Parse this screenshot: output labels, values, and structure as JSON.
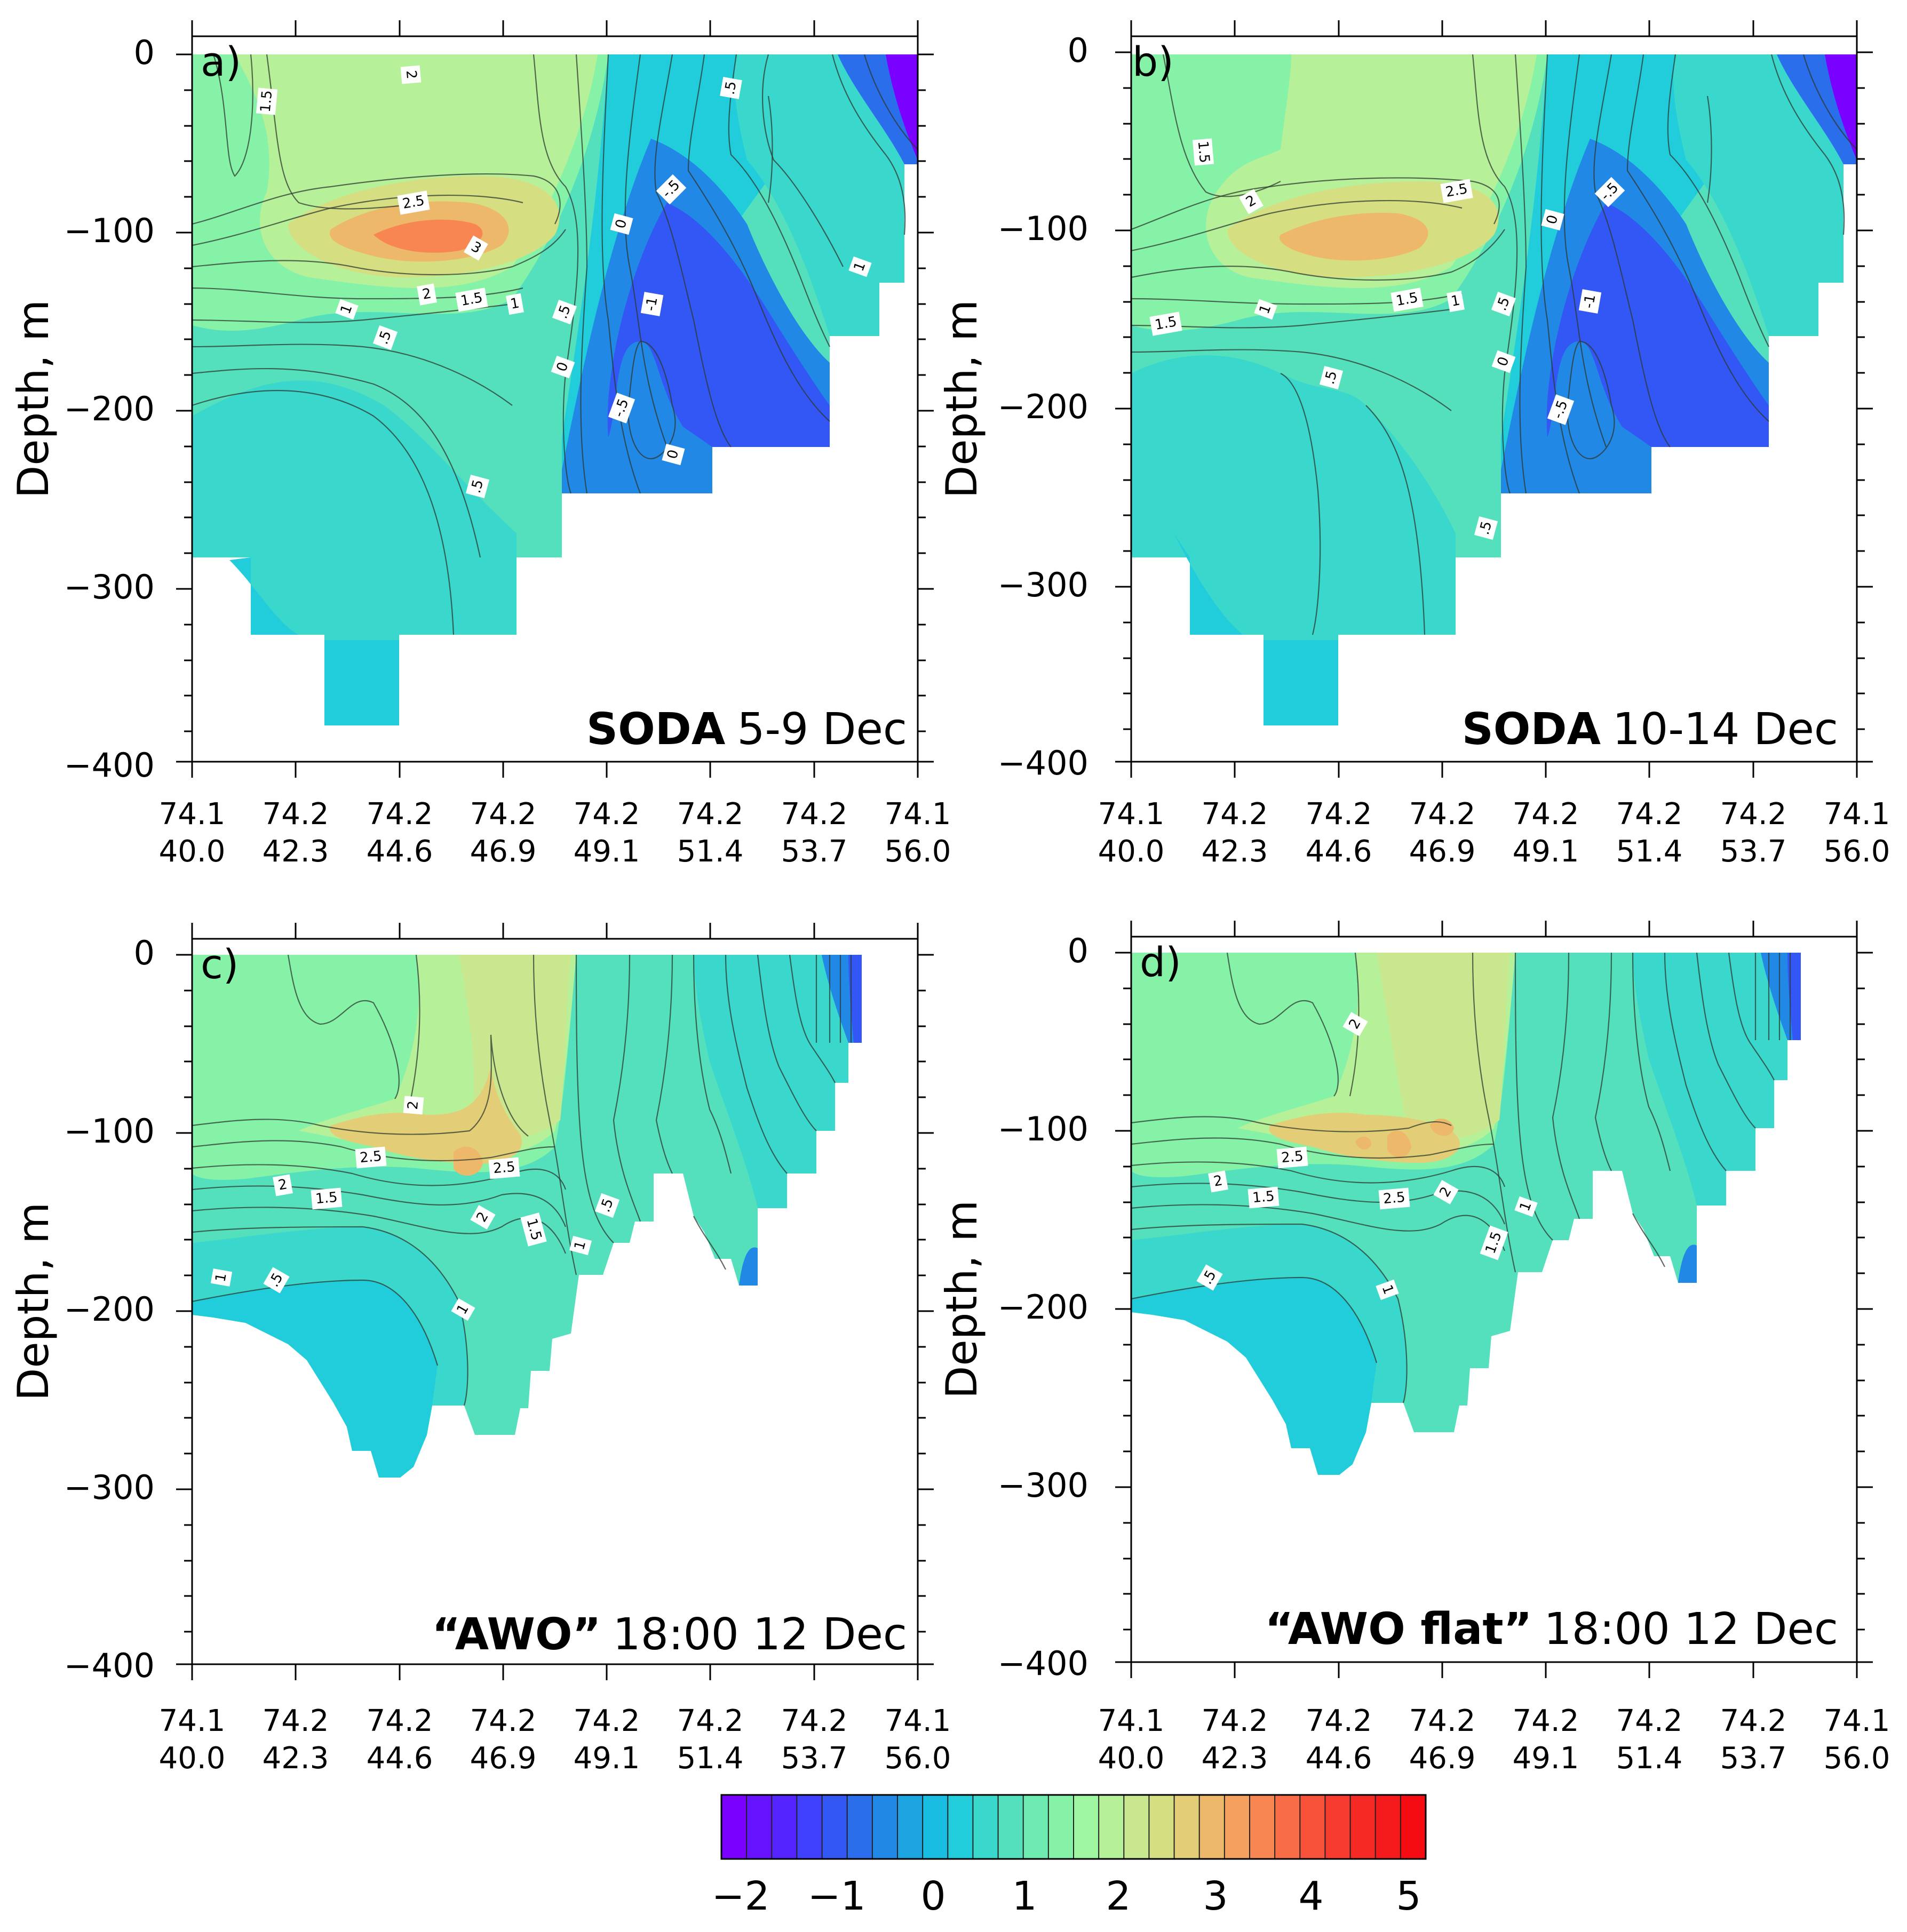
{
  "chart_data": [
    {
      "type": "contour",
      "panel_letter": "a)",
      "title_bold": "SODA",
      "title_rest": "5-9 Dec",
      "ylabel": "Depth, m",
      "ylim": [
        -400,
        0
      ],
      "yticks": [
        "0",
        "−100",
        "−200",
        "−300",
        "−400"
      ],
      "xticks_lat": [
        "74.1",
        "74.2",
        "74.2",
        "74.2",
        "74.2",
        "74.2",
        "74.2",
        "74.1"
      ],
      "xticks_lon": [
        "40.0",
        "42.3",
        "44.6",
        "46.9",
        "49.1",
        "51.4",
        "53.7",
        "56.0"
      ],
      "xlim_lon": [
        40.0,
        56.0
      ],
      "contour_labels": [
        "1.5",
        "2",
        ".5",
        "2.5",
        "3",
        "2",
        "1.5",
        "1",
        "1",
        ".5",
        "0",
        "-.5",
        "-1",
        ".5",
        "0",
        "-.5",
        "0",
        ".5",
        "1"
      ]
    },
    {
      "type": "contour",
      "panel_letter": "b)",
      "title_bold": "SODA",
      "title_rest": "10-14 Dec",
      "ylabel": "Depth, m",
      "ylim": [
        -400,
        0
      ],
      "yticks": [
        "0",
        "−100",
        "−200",
        "−300",
        "−400"
      ],
      "xticks_lat": [
        "74.1",
        "74.2",
        "74.2",
        "74.2",
        "74.2",
        "74.2",
        "74.2",
        "74.1"
      ],
      "xticks_lon": [
        "40.0",
        "42.3",
        "44.6",
        "46.9",
        "49.1",
        "51.4",
        "53.7",
        "56.0"
      ],
      "xlim_lon": [
        40.0,
        56.0
      ],
      "contour_labels": [
        "1.5",
        "2",
        "2.5",
        "1.5",
        "1",
        "1",
        "1.5",
        ".5",
        "0",
        "-.5",
        "-1",
        ".5",
        "0",
        "-.5",
        ".5"
      ]
    },
    {
      "type": "contour",
      "panel_letter": "c)",
      "title_bold": "“AWO”",
      "title_rest": "18:00 12 Dec",
      "ylabel": "Depth, m",
      "ylim": [
        -400,
        0
      ],
      "yticks": [
        "0",
        "−100",
        "−200",
        "−300",
        "−400"
      ],
      "xticks_lat": [
        "74.1",
        "74.2",
        "74.2",
        "74.2",
        "74.2",
        "74.2",
        "74.2",
        "74.1"
      ],
      "xticks_lon": [
        "40.0",
        "42.3",
        "44.6",
        "46.9",
        "49.1",
        "51.4",
        "53.7",
        "56.0"
      ],
      "xlim_lon": [
        40.0,
        56.0
      ],
      "contour_labels": [
        "2",
        "2.5",
        "2.5",
        "2",
        "1.5",
        "2",
        "1.5",
        ".5",
        "1",
        "1",
        ".5",
        "1"
      ]
    },
    {
      "type": "contour",
      "panel_letter": "d)",
      "title_bold": "“AWO flat”",
      "title_rest": "18:00 12 Dec",
      "ylabel": "Depth, m",
      "ylim": [
        -400,
        0
      ],
      "yticks": [
        "0",
        "−100",
        "−200",
        "−300",
        "−400"
      ],
      "xticks_lat": [
        "74.1",
        "74.2",
        "74.2",
        "74.2",
        "74.2",
        "74.2",
        "74.2",
        "74.1"
      ],
      "xticks_lon": [
        "40.0",
        "42.3",
        "44.6",
        "46.9",
        "49.1",
        "51.4",
        "53.7",
        "56.0"
      ],
      "xlim_lon": [
        40.0,
        56.0
      ],
      "contour_labels": [
        "2",
        "2.5",
        "2",
        "1.5",
        "2.5",
        "2",
        "1",
        "1.5",
        ".5",
        "1"
      ]
    }
  ],
  "colorbar": {
    "range": [
      -2,
      5
    ],
    "levels": [
      -2,
      -1.75,
      -1.5,
      -1.25,
      -1,
      -0.75,
      -0.5,
      -0.25,
      0,
      0.25,
      0.5,
      0.75,
      1,
      1.25,
      1.5,
      1.75,
      2,
      2.25,
      2.5,
      2.75,
      3,
      3.25,
      3.5,
      3.75,
      4,
      4.25,
      4.5,
      4.75,
      5
    ],
    "labels": [
      "−2",
      "−1",
      "0",
      "1",
      "2",
      "3",
      "4",
      "5"
    ],
    "colors": [
      "#7a00ff",
      "#6612ff",
      "#5324ff",
      "#4040ff",
      "#3357f5",
      "#2a6eec",
      "#2288e6",
      "#1ca4e0",
      "#18bde1",
      "#22cddb",
      "#3ad7cc",
      "#55e0bd",
      "#6deab0",
      "#86f2a8",
      "#9ff6a1",
      "#b6f099",
      "#c8e78e",
      "#d6de82",
      "#e3cd76",
      "#edb86a",
      "#f4a05e",
      "#f78652",
      "#f86c46",
      "#f8533a",
      "#f73c2f",
      "#f62a25",
      "#f51a1c",
      "#f40c12"
    ]
  }
}
